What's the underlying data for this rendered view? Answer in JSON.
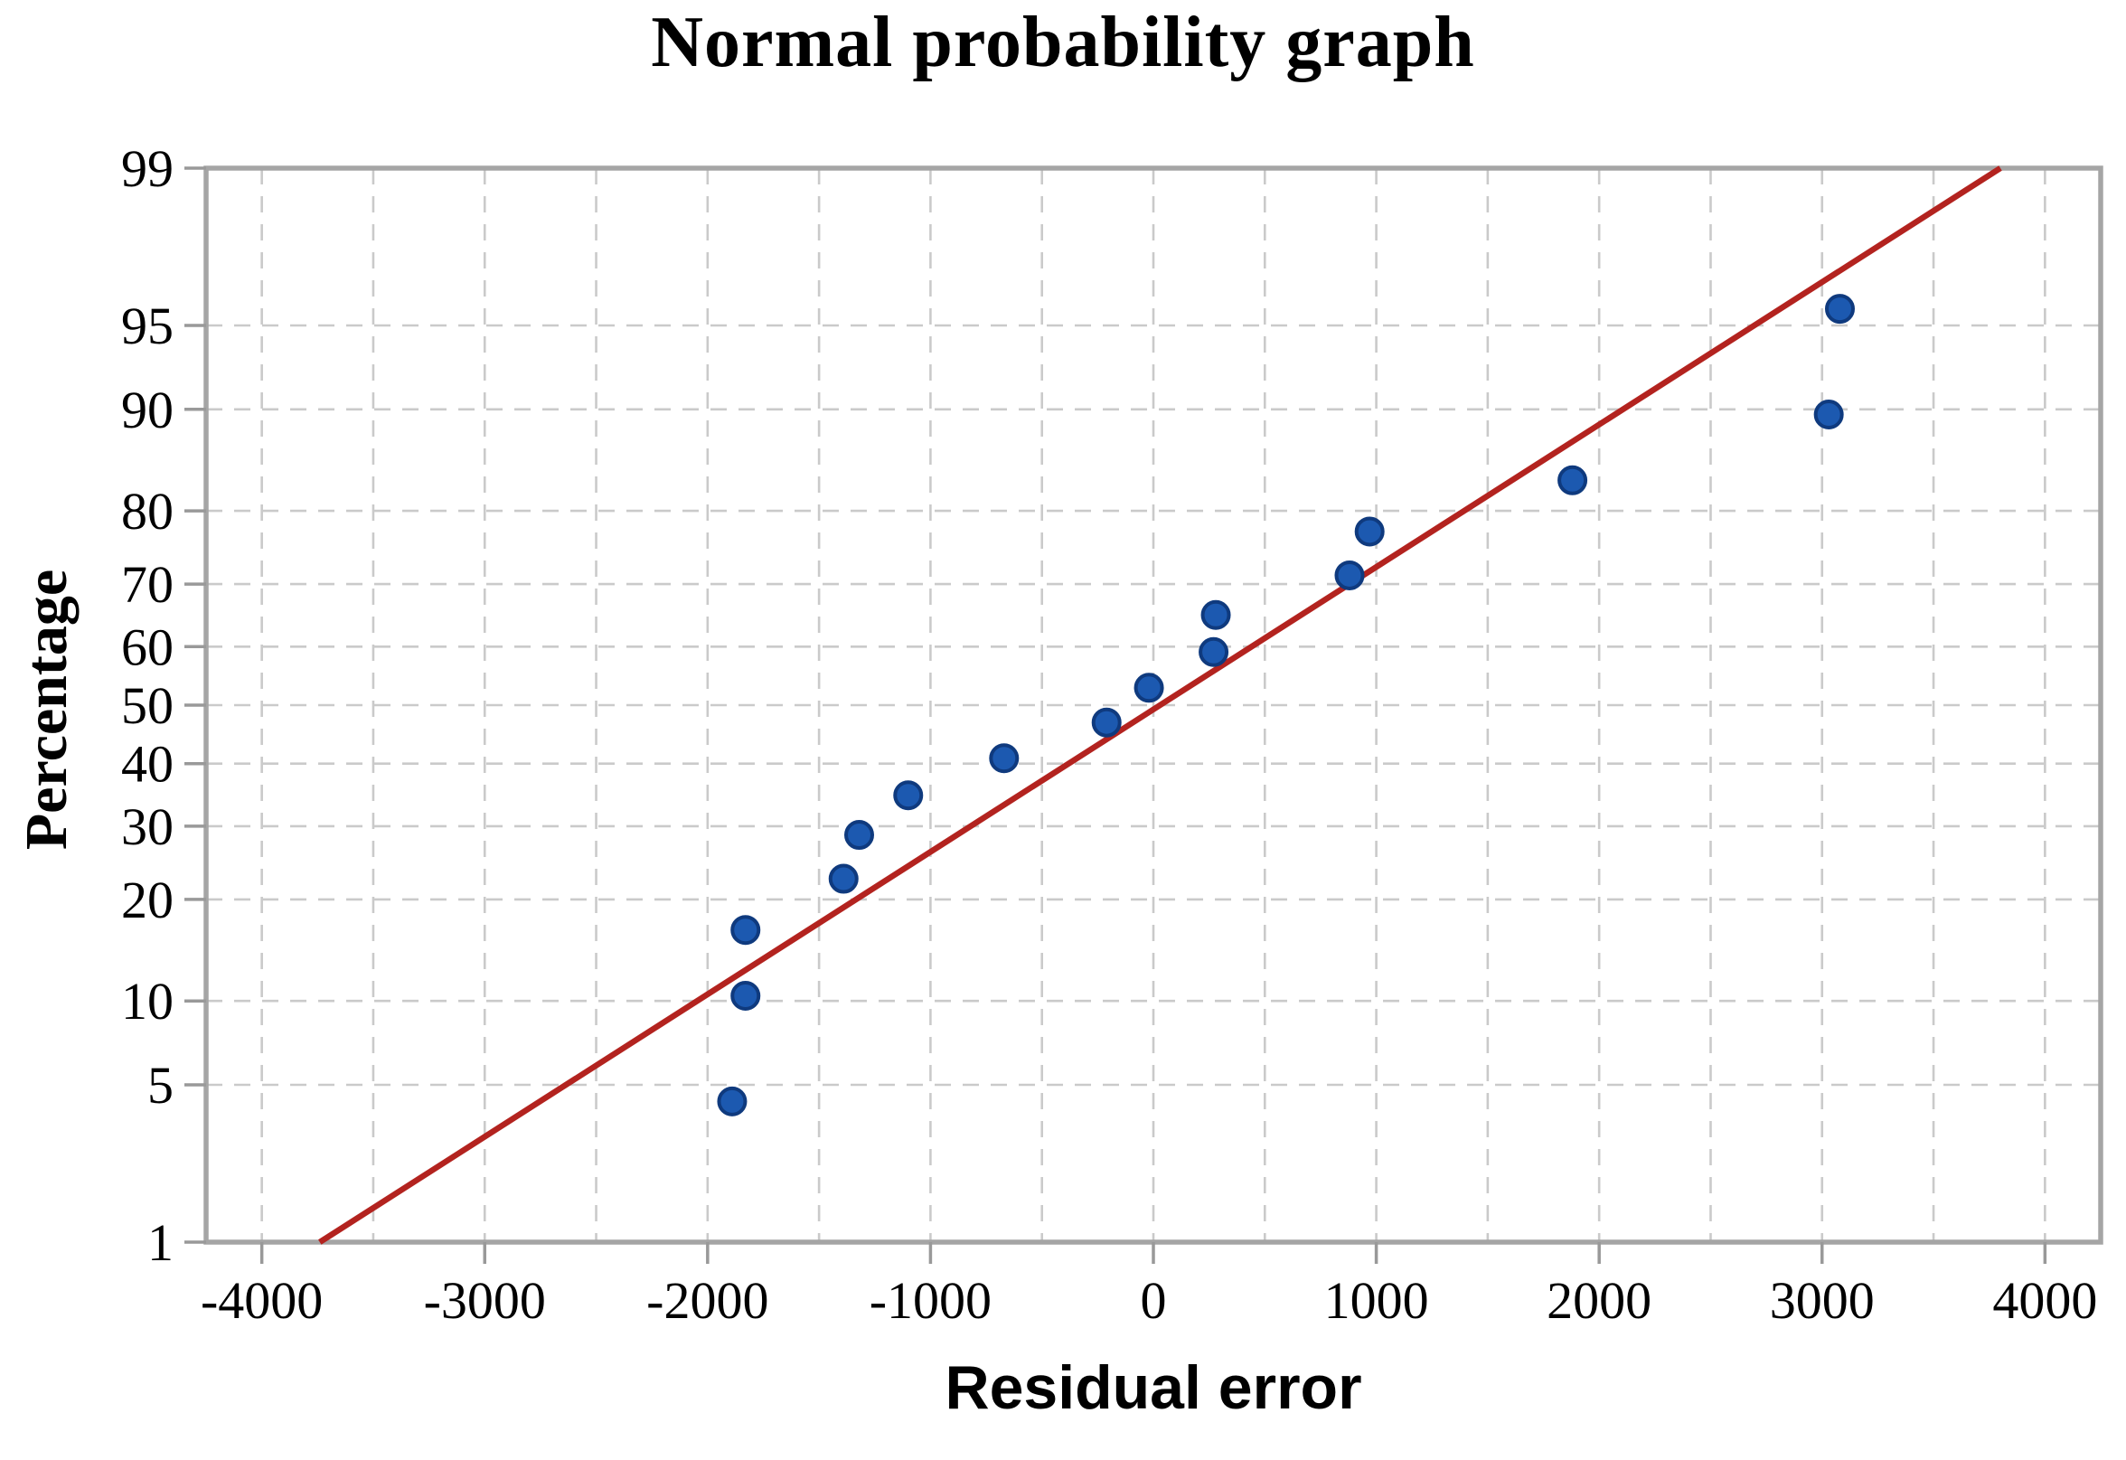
{
  "chart_data": {
    "type": "scatter",
    "title": "Normal probability graph",
    "xlabel": "Residual error",
    "ylabel": "Percentage",
    "y_scale": "normal-probability",
    "grid": "dashed",
    "legend": "none",
    "xlim": [
      -4250,
      4250
    ],
    "ylim": [
      1,
      99
    ],
    "x_ticks": [
      -4000,
      -3000,
      -2000,
      -1000,
      0,
      1000,
      2000,
      3000,
      4000
    ],
    "x_gridline_step": 500,
    "y_ticks": [
      1,
      5,
      10,
      20,
      30,
      40,
      50,
      60,
      70,
      80,
      90,
      95,
      99
    ],
    "y_gridlines": [
      5,
      10,
      20,
      30,
      40,
      50,
      60,
      70,
      80,
      90,
      95
    ],
    "points": [
      {
        "residual": -1890,
        "percent": 4.3
      },
      {
        "residual": -1830,
        "percent": 10.4
      },
      {
        "residual": -1830,
        "percent": 16.5
      },
      {
        "residual": -1390,
        "percent": 22.6
      },
      {
        "residual": -1320,
        "percent": 28.7
      },
      {
        "residual": -1100,
        "percent": 34.8
      },
      {
        "residual": -670,
        "percent": 40.9
      },
      {
        "residual": -210,
        "percent": 47.0
      },
      {
        "residual": -20,
        "percent": 53.0
      },
      {
        "residual": 270,
        "percent": 59.1
      },
      {
        "residual": 280,
        "percent": 65.2
      },
      {
        "residual": 880,
        "percent": 71.3
      },
      {
        "residual": 970,
        "percent": 77.4
      },
      {
        "residual": 1880,
        "percent": 83.5
      },
      {
        "residual": 3030,
        "percent": 89.6
      },
      {
        "residual": 3080,
        "percent": 95.7
      }
    ],
    "fit_line": {
      "from": {
        "residual": -3740,
        "percent": 1
      },
      "to": {
        "residual": 3800,
        "percent": 99
      }
    },
    "colors": {
      "point_fill": "#1c59b0",
      "point_stroke": "#0f3a7e",
      "fit_line": "#b3231f",
      "frame": "#a5a5a5",
      "gridline": "#cacaca",
      "tick": "#999999",
      "text": "#000000"
    }
  }
}
